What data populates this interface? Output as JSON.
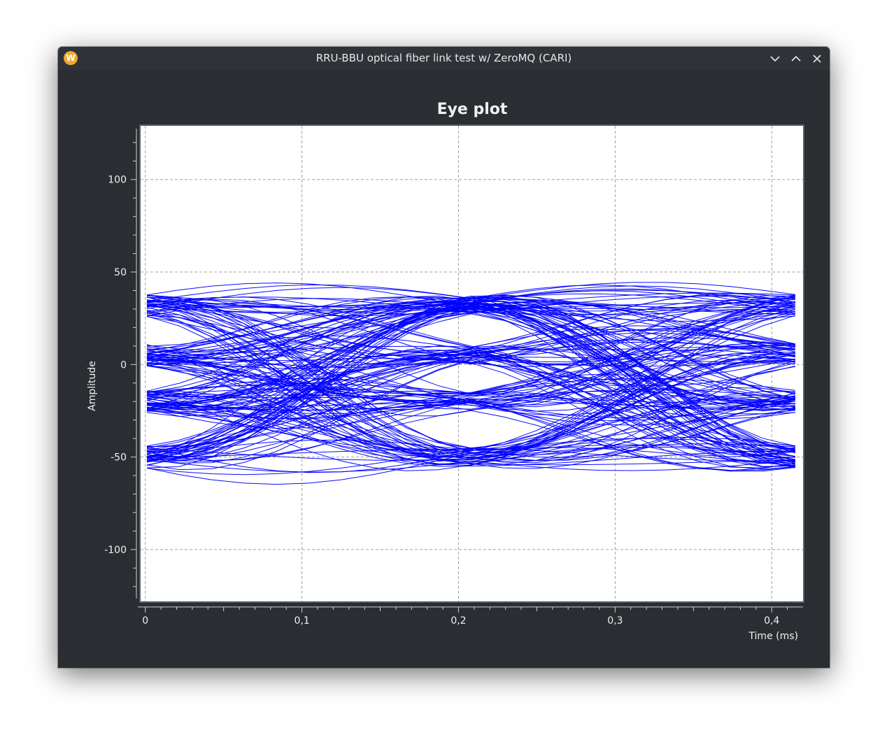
{
  "window": {
    "title": "RRU-BBU optical fiber link test w/ ZeroMQ (CARI)",
    "app_icon_letter": "W",
    "buttons": [
      "minimize",
      "maximize",
      "close"
    ]
  },
  "colors": {
    "window_bg": "#2a2e32",
    "plot_bg": "#ffffff",
    "trace": "#0000ff",
    "grid": "#a0a0a0",
    "text": "#f0f0f0",
    "icon": "#f0a92f"
  },
  "chart_data": {
    "type": "line",
    "title": "Eye plot",
    "xlabel": "Time (ms)",
    "ylabel": "Amplitude",
    "xlim": [
      -0.003,
      0.42
    ],
    "ylim": [
      -128,
      129
    ],
    "x_ticks": [
      {
        "value": 0,
        "label": "0"
      },
      {
        "value": 0.1,
        "label": "0,1"
      },
      {
        "value": 0.2,
        "label": "0,2"
      },
      {
        "value": 0.3,
        "label": "0,3"
      },
      {
        "value": 0.4,
        "label": "0,4"
      }
    ],
    "y_ticks": [
      {
        "value": 100,
        "label": "100"
      },
      {
        "value": 50,
        "label": "50"
      },
      {
        "value": 0,
        "label": "0"
      },
      {
        "value": -50,
        "label": "-50"
      },
      {
        "value": -100,
        "label": "-100"
      }
    ],
    "grid": true,
    "symbol_levels": [
      -50,
      -20,
      5,
      32
    ],
    "symbol_times": [
      0.0,
      0.208,
      0.417
    ],
    "trace_count": 180,
    "samples_per_trace": 21,
    "eye_opening": {
      "center_time": 0.208,
      "ranges": [
        [
          -45,
          -28
        ],
        [
          -14,
          0
        ],
        [
          12,
          26
        ]
      ]
    }
  }
}
